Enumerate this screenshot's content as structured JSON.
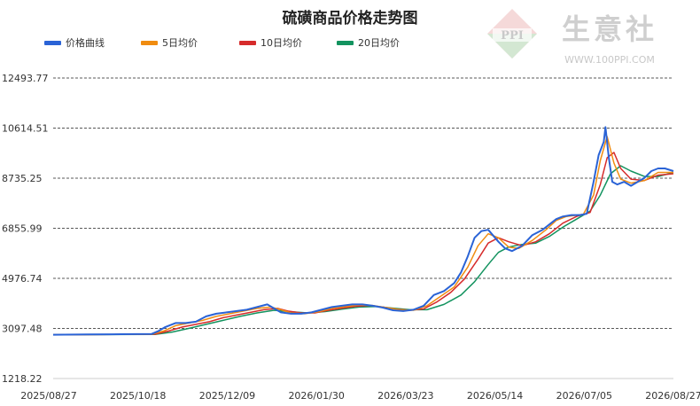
{
  "watermark": {
    "brand_cn": "生意社",
    "logo_text": "PPI",
    "url": "WWW.100PPI.COM"
  },
  "colors": {
    "price": "#2a63d6",
    "ma5": "#f08c10",
    "ma10": "#d62b2b",
    "ma20": "#13935f",
    "grid": "#222222",
    "axis": "#bbbbbb"
  },
  "chart_data": {
    "type": "line",
    "title": "硫磺商品价格走势图",
    "xlabel": "",
    "ylabel": "",
    "ylim": [
      1218.22,
      12493.77
    ],
    "y_ticks": [
      "1218.22",
      "3097.48",
      "4976.74",
      "6855.99",
      "8735.25",
      "10614.51",
      "12493.77"
    ],
    "x_tick_labels": [
      "2025/08/27",
      "2025/10/18",
      "2025/12/09",
      "2026/01/30",
      "2026/03/23",
      "2026/05/14",
      "2026/07/05",
      "2026/08/27"
    ],
    "x_range_days": [
      0,
      365
    ],
    "grid": "horizontal-dashed",
    "legend_position": "top-left",
    "series": [
      {
        "name": "价格曲线",
        "color": "#2a63d6",
        "points": [
          [
            0,
            2860
          ],
          [
            20,
            2870
          ],
          [
            40,
            2880
          ],
          [
            58,
            2890
          ],
          [
            62,
            3000
          ],
          [
            66,
            3150
          ],
          [
            72,
            3300
          ],
          [
            78,
            3300
          ],
          [
            84,
            3350
          ],
          [
            90,
            3550
          ],
          [
            96,
            3650
          ],
          [
            102,
            3700
          ],
          [
            108,
            3750
          ],
          [
            114,
            3800
          ],
          [
            120,
            3900
          ],
          [
            126,
            4000
          ],
          [
            130,
            3850
          ],
          [
            134,
            3700
          ],
          [
            140,
            3650
          ],
          [
            146,
            3650
          ],
          [
            152,
            3700
          ],
          [
            158,
            3800
          ],
          [
            164,
            3900
          ],
          [
            170,
            3950
          ],
          [
            176,
            4000
          ],
          [
            182,
            4000
          ],
          [
            188,
            3950
          ],
          [
            194,
            3880
          ],
          [
            200,
            3780
          ],
          [
            206,
            3750
          ],
          [
            212,
            3800
          ],
          [
            218,
            3950
          ],
          [
            224,
            4350
          ],
          [
            230,
            4500
          ],
          [
            236,
            4800
          ],
          [
            240,
            5200
          ],
          [
            244,
            5800
          ],
          [
            248,
            6500
          ],
          [
            252,
            6750
          ],
          [
            256,
            6800
          ],
          [
            262,
            6350
          ],
          [
            266,
            6100
          ],
          [
            270,
            6000
          ],
          [
            276,
            6200
          ],
          [
            282,
            6600
          ],
          [
            288,
            6800
          ],
          [
            292,
            7000
          ],
          [
            296,
            7200
          ],
          [
            300,
            7300
          ],
          [
            305,
            7350
          ],
          [
            310,
            7350
          ],
          [
            314,
            7400
          ],
          [
            318,
            8600
          ],
          [
            321,
            9600
          ],
          [
            324,
            10100
          ],
          [
            325,
            10650
          ],
          [
            327,
            9500
          ],
          [
            329,
            8600
          ],
          [
            332,
            8500
          ],
          [
            336,
            8600
          ],
          [
            340,
            8450
          ],
          [
            344,
            8600
          ],
          [
            348,
            8750
          ],
          [
            352,
            9000
          ],
          [
            356,
            9100
          ],
          [
            360,
            9100
          ],
          [
            365,
            9000
          ]
        ]
      },
      {
        "name": "5日均价",
        "color": "#f08c10",
        "points": [
          [
            0,
            2860
          ],
          [
            58,
            2880
          ],
          [
            65,
            3000
          ],
          [
            72,
            3200
          ],
          [
            80,
            3300
          ],
          [
            88,
            3400
          ],
          [
            96,
            3550
          ],
          [
            104,
            3650
          ],
          [
            112,
            3750
          ],
          [
            120,
            3850
          ],
          [
            128,
            3900
          ],
          [
            134,
            3800
          ],
          [
            140,
            3680
          ],
          [
            148,
            3650
          ],
          [
            156,
            3720
          ],
          [
            164,
            3850
          ],
          [
            172,
            3920
          ],
          [
            180,
            3980
          ],
          [
            188,
            3960
          ],
          [
            196,
            3880
          ],
          [
            204,
            3800
          ],
          [
            212,
            3780
          ],
          [
            220,
            3950
          ],
          [
            228,
            4300
          ],
          [
            236,
            4650
          ],
          [
            244,
            5400
          ],
          [
            250,
            6200
          ],
          [
            256,
            6650
          ],
          [
            262,
            6500
          ],
          [
            268,
            6150
          ],
          [
            274,
            6100
          ],
          [
            282,
            6400
          ],
          [
            290,
            6800
          ],
          [
            296,
            7150
          ],
          [
            302,
            7300
          ],
          [
            312,
            7380
          ],
          [
            318,
            8100
          ],
          [
            322,
            9400
          ],
          [
            326,
            10300
          ],
          [
            330,
            9300
          ],
          [
            334,
            8700
          ],
          [
            340,
            8550
          ],
          [
            348,
            8650
          ],
          [
            356,
            8950
          ],
          [
            365,
            8950
          ]
        ]
      },
      {
        "name": "10日均价",
        "color": "#d62b2b",
        "points": [
          [
            0,
            2860
          ],
          [
            60,
            2880
          ],
          [
            68,
            3000
          ],
          [
            76,
            3150
          ],
          [
            84,
            3250
          ],
          [
            92,
            3350
          ],
          [
            100,
            3500
          ],
          [
            108,
            3600
          ],
          [
            116,
            3700
          ],
          [
            124,
            3800
          ],
          [
            132,
            3850
          ],
          [
            138,
            3750
          ],
          [
            146,
            3680
          ],
          [
            154,
            3680
          ],
          [
            162,
            3780
          ],
          [
            170,
            3860
          ],
          [
            178,
            3930
          ],
          [
            186,
            3960
          ],
          [
            194,
            3900
          ],
          [
            202,
            3820
          ],
          [
            210,
            3780
          ],
          [
            218,
            3830
          ],
          [
            226,
            4100
          ],
          [
            234,
            4450
          ],
          [
            242,
            4950
          ],
          [
            250,
            5700
          ],
          [
            256,
            6300
          ],
          [
            262,
            6500
          ],
          [
            268,
            6350
          ],
          [
            276,
            6200
          ],
          [
            284,
            6350
          ],
          [
            292,
            6650
          ],
          [
            300,
            7050
          ],
          [
            308,
            7300
          ],
          [
            316,
            7450
          ],
          [
            322,
            8500
          ],
          [
            326,
            9500
          ],
          [
            330,
            9700
          ],
          [
            334,
            9100
          ],
          [
            340,
            8700
          ],
          [
            348,
            8650
          ],
          [
            356,
            8850
          ],
          [
            365,
            8900
          ]
        ]
      },
      {
        "name": "20日均价",
        "color": "#13935f",
        "points": [
          [
            0,
            2860
          ],
          [
            60,
            2870
          ],
          [
            70,
            2960
          ],
          [
            80,
            3100
          ],
          [
            90,
            3250
          ],
          [
            100,
            3400
          ],
          [
            110,
            3550
          ],
          [
            120,
            3680
          ],
          [
            130,
            3780
          ],
          [
            140,
            3720
          ],
          [
            150,
            3680
          ],
          [
            160,
            3730
          ],
          [
            170,
            3820
          ],
          [
            180,
            3900
          ],
          [
            190,
            3920
          ],
          [
            200,
            3860
          ],
          [
            210,
            3800
          ],
          [
            220,
            3800
          ],
          [
            230,
            4000
          ],
          [
            240,
            4350
          ],
          [
            248,
            4850
          ],
          [
            256,
            5500
          ],
          [
            262,
            5950
          ],
          [
            268,
            6150
          ],
          [
            276,
            6250
          ],
          [
            284,
            6300
          ],
          [
            292,
            6550
          ],
          [
            300,
            6900
          ],
          [
            308,
            7200
          ],
          [
            316,
            7500
          ],
          [
            322,
            8100
          ],
          [
            328,
            8900
          ],
          [
            334,
            9200
          ],
          [
            340,
            9000
          ],
          [
            348,
            8800
          ],
          [
            356,
            8800
          ],
          [
            365,
            8950
          ]
        ]
      }
    ]
  }
}
